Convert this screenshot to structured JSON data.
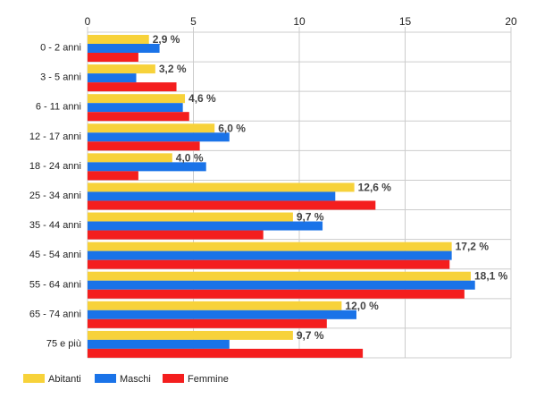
{
  "chart_data": {
    "type": "bar",
    "orientation": "horizontal",
    "categories": [
      "0 - 2 anni",
      "3 - 5 anni",
      "6 - 11 anni",
      "12 - 17 anni",
      "18 - 24 anni",
      "25 - 34 anni",
      "35 - 44 anni",
      "45 - 54 anni",
      "55 - 64 anni",
      "65 - 74 anni",
      "75 e più"
    ],
    "series": [
      {
        "name": "Abitanti",
        "color": "#f7d23a",
        "values": [
          2.9,
          3.2,
          4.6,
          6.0,
          4.0,
          12.6,
          9.7,
          17.2,
          18.1,
          12.0,
          9.7
        ]
      },
      {
        "name": "Maschi",
        "color": "#1a73e8",
        "values": [
          3.4,
          2.3,
          4.5,
          6.7,
          5.6,
          11.7,
          11.1,
          17.2,
          18.3,
          12.7,
          6.7
        ]
      },
      {
        "name": "Femmine",
        "color": "#f41e1e",
        "values": [
          2.4,
          4.2,
          4.8,
          5.3,
          2.4,
          13.6,
          8.3,
          17.1,
          17.8,
          11.3,
          13.0
        ]
      }
    ],
    "data_labels": [
      "2,9 %",
      "3,2 %",
      "4,6 %",
      "6,0 %",
      "4,0 %",
      "12,6 %",
      "9,7 %",
      "17,2 %",
      "18,1 %",
      "12,0 %",
      "9,7 %"
    ],
    "xlim": [
      0,
      20
    ],
    "ticks": [
      "0",
      "5",
      "10",
      "15",
      "20"
    ],
    "tick_values": [
      0,
      5,
      10,
      15,
      20
    ],
    "grid": true,
    "axis_position": "top",
    "legend_position": "bottom-left"
  }
}
